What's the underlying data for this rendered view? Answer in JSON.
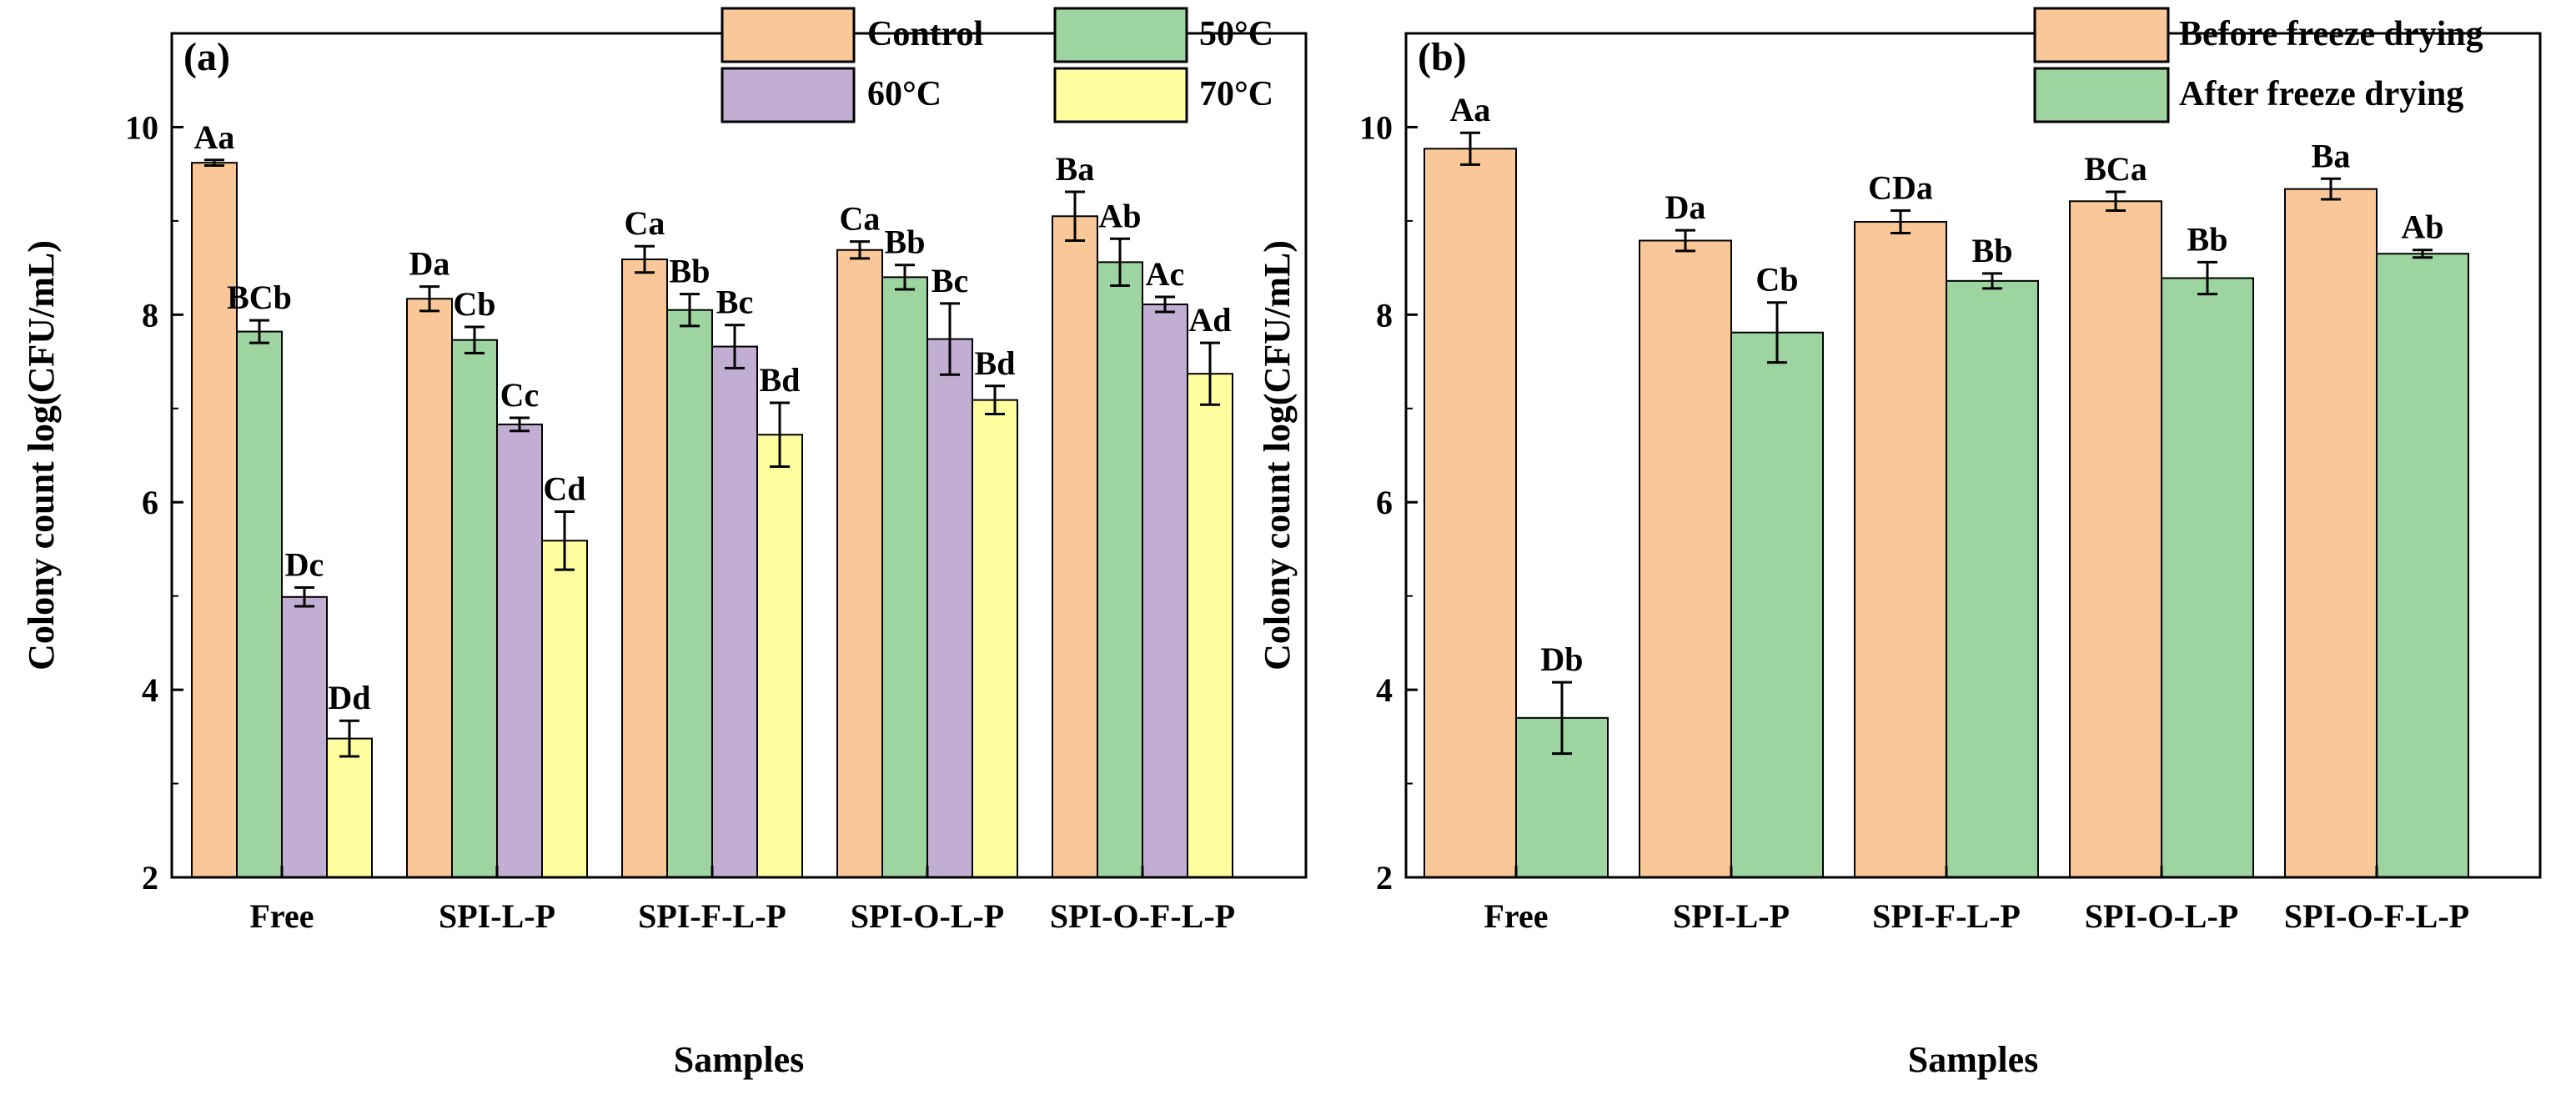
{
  "chart_data": [
    {
      "type": "bar",
      "panel_label": "(a)",
      "xlabel": "Samples",
      "ylabel": "Colony count log(CFU/mL)",
      "ylim": [
        2,
        11
      ],
      "yticks": [
        "2",
        "4",
        "6",
        "8",
        "10"
      ],
      "categories": [
        "Free",
        "SPI-L-P",
        "SPI-F-L-P",
        "SPI-O-L-P",
        "SPI-O-F-L-P"
      ],
      "legend_position": "top-right",
      "series": [
        {
          "name": "Control",
          "color": "#FAC898",
          "values": [
            9.62,
            8.17,
            8.59,
            8.69,
            9.05
          ],
          "errors": [
            0.03,
            0.13,
            0.14,
            0.09,
            0.26
          ],
          "labels": [
            "Aa",
            "Da",
            "Ca",
            "Ca",
            "Ba"
          ]
        },
        {
          "name": "50°C",
          "color": "#9DD49F",
          "values": [
            7.82,
            7.73,
            8.05,
            8.4,
            8.56
          ],
          "errors": [
            0.12,
            0.14,
            0.17,
            0.13,
            0.25
          ],
          "labels": [
            "BCb",
            "Cb",
            "Bb",
            "Bb",
            "Ab"
          ]
        },
        {
          "name": "60°C",
          "color": "#C2AED3",
          "values": [
            4.99,
            6.83,
            7.66,
            7.74,
            8.11
          ],
          "errors": [
            0.1,
            0.07,
            0.23,
            0.38,
            0.08
          ],
          "labels": [
            "Dc",
            "Cc",
            "Bc",
            "Bc",
            "Ac"
          ]
        },
        {
          "name": "70°C",
          "color": "#FFFFA0",
          "values": [
            3.48,
            5.59,
            6.72,
            7.09,
            7.37
          ],
          "errors": [
            0.19,
            0.31,
            0.34,
            0.15,
            0.33
          ],
          "labels": [
            "Dd",
            "Cd",
            "Bd",
            "Bd",
            "Ad"
          ]
        }
      ]
    },
    {
      "type": "bar",
      "panel_label": "(b)",
      "xlabel": "Samples",
      "ylabel": "Colony count log(CFU/mL)",
      "ylim": [
        2,
        11
      ],
      "yticks": [
        "2",
        "4",
        "6",
        "8",
        "10"
      ],
      "categories": [
        "Free",
        "SPI-L-P",
        "SPI-F-L-P",
        "SPI-O-L-P",
        "SPI-O-F-L-P"
      ],
      "legend_position": "top-right",
      "series": [
        {
          "name": "Before freeze drying",
          "color": "#FAC898",
          "values": [
            9.77,
            8.79,
            8.99,
            9.21,
            9.34
          ],
          "errors": [
            0.17,
            0.11,
            0.12,
            0.1,
            0.11
          ],
          "labels": [
            "Aa",
            "Da",
            "CDa",
            "BCa",
            "Ba"
          ]
        },
        {
          "name": "After freeze drying",
          "color": "#9DD49F",
          "values": [
            3.7,
            7.81,
            8.36,
            8.39,
            8.65
          ],
          "errors": [
            0.38,
            0.32,
            0.08,
            0.17,
            0.04
          ],
          "labels": [
            "Db",
            "Cb",
            "Bb",
            "Bb",
            "Ab"
          ]
        }
      ]
    }
  ]
}
